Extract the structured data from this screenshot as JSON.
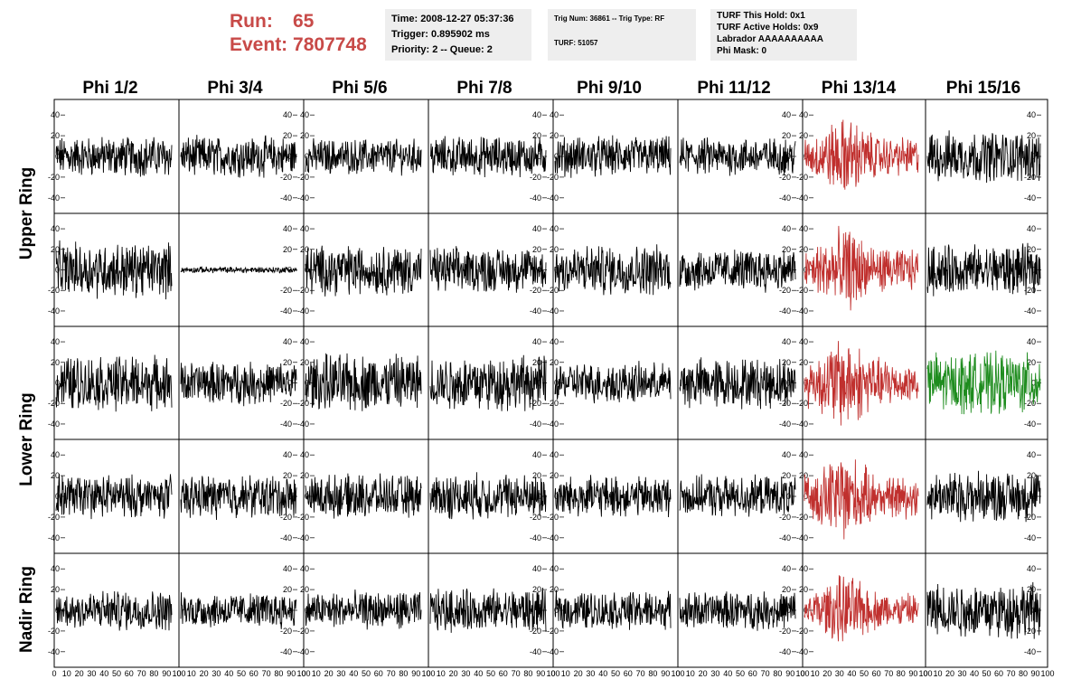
{
  "header": {
    "run_label": "Run:",
    "run_value": "65",
    "event_label": "Event:",
    "event_value": "7807748",
    "run_color": "#c84a48"
  },
  "info_panels": [
    {
      "lines": [
        "Time: 2008-12-27 05:37:36",
        "Trigger: 0.895902 ms",
        "Priority: 2 -- Queue: 2"
      ]
    },
    {
      "lines": [
        "Trig Num: 36861 -- Trig Type: RF",
        "",
        "TURF: 51057"
      ]
    },
    {
      "lines": [
        "TURF This Hold: 0x1",
        "TURF Active Holds: 0x9",
        "Labrador AAAAAAAAAA",
        "Phi Mask: 0"
      ]
    }
  ],
  "columns": [
    "Phi 1/2",
    "Phi 3/4",
    "Phi 5/6",
    "Phi 7/8",
    "Phi 9/10",
    "Phi 11/12",
    "Phi 13/14",
    "Phi 15/16"
  ],
  "rings": [
    "Upper Ring",
    "Lower Ring",
    "Nadir Ring"
  ],
  "y_ticks": [
    "40",
    "20",
    "0",
    "-20",
    "-40"
  ],
  "x_tick_strip": "0 10 20 30 40 50 60 70 80 90100",
  "x_ticks": [
    "0",
    "10",
    "20",
    "30",
    "40",
    "50",
    "60",
    "70",
    "80",
    "90",
    "100"
  ],
  "trace_colors": {
    "normal": "#000000",
    "triggered": "#c0302e",
    "hold": "#1e8c1e"
  },
  "chart_data": {
    "type": "line",
    "description_rows": 5,
    "xlim": [
      0,
      100
    ],
    "ylim": [
      -55,
      55
    ],
    "waveform_amplitude": [
      [
        16,
        16,
        14,
        16,
        16,
        15,
        22,
        20
      ],
      [
        22,
        2.5,
        20,
        18,
        20,
        17,
        24,
        20
      ],
      [
        22,
        17,
        23,
        22,
        16,
        20,
        26,
        24
      ],
      [
        17,
        17,
        17,
        18,
        16,
        16,
        24,
        20
      ],
      [
        16,
        14,
        15,
        17,
        15,
        15,
        20,
        22
      ]
    ],
    "waveform_color": [
      [
        "normal",
        "normal",
        "normal",
        "normal",
        "normal",
        "normal",
        "triggered",
        "normal"
      ],
      [
        "normal",
        "normal",
        "normal",
        "normal",
        "normal",
        "normal",
        "triggered",
        "normal"
      ],
      [
        "normal",
        "normal",
        "normal",
        "normal",
        "normal",
        "normal",
        "triggered",
        "hold"
      ],
      [
        "normal",
        "normal",
        "normal",
        "normal",
        "normal",
        "normal",
        "triggered",
        "normal"
      ],
      [
        "normal",
        "normal",
        "normal",
        "normal",
        "normal",
        "normal",
        "triggered",
        "normal"
      ]
    ],
    "axis_side": [
      [
        "left",
        "right",
        "left",
        "right",
        "left",
        "right",
        "left",
        "right"
      ],
      [
        "left",
        "right",
        "left",
        "right",
        "left",
        "right",
        "left",
        "right"
      ],
      [
        "left",
        "right",
        "left",
        "right",
        "left",
        "right",
        "left",
        "right"
      ],
      [
        "left",
        "right",
        "left",
        "right",
        "left",
        "right",
        "left",
        "right"
      ],
      [
        "left",
        "right",
        "left",
        "right",
        "left",
        "right",
        "left",
        "right"
      ]
    ]
  }
}
